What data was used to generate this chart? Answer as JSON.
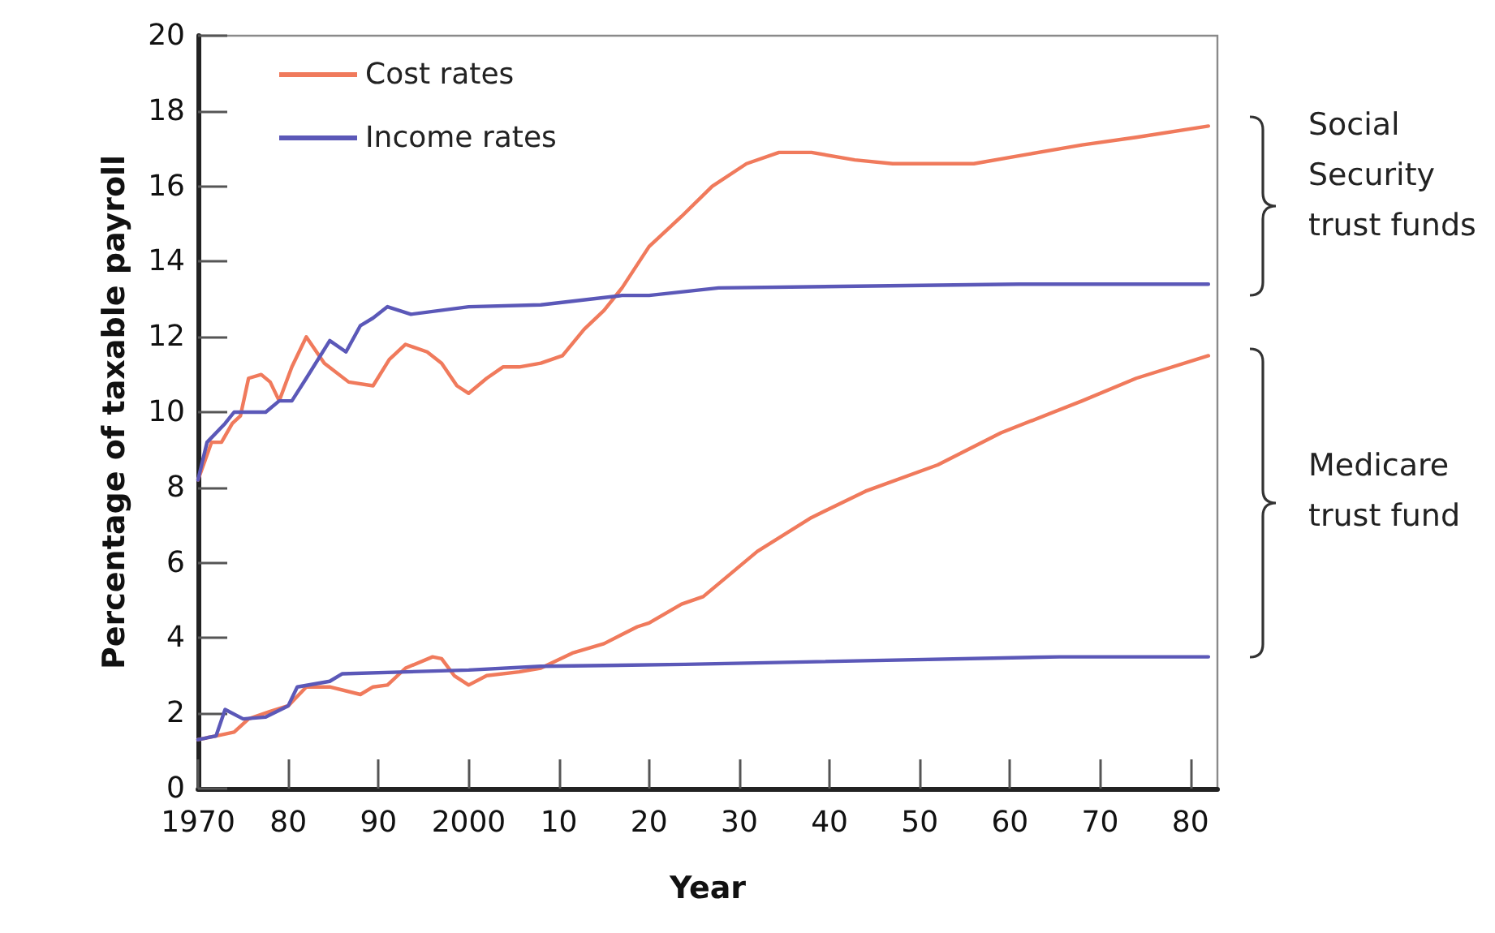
{
  "chart_data": {
    "type": "line",
    "xlabel": "Year",
    "ylabel": "Percentage of taxable payroll",
    "xlim": [
      1970,
      2083
    ],
    "ylim": [
      0,
      20
    ],
    "xticks": [
      1970,
      {
        "value": 1980,
        "label": "80"
      },
      {
        "value": 1990,
        "label": "90"
      },
      2000,
      {
        "value": 2010,
        "label": "10"
      },
      {
        "value": 2020,
        "label": "20"
      },
      {
        "value": 2030,
        "label": "30"
      },
      {
        "value": 2040,
        "label": "40"
      },
      {
        "value": 2050,
        "label": "50"
      },
      {
        "value": 2060,
        "label": "60"
      },
      {
        "value": 2070,
        "label": "70"
      },
      {
        "value": 2080,
        "label": "80"
      }
    ],
    "yticks": [
      0,
      2,
      4,
      6,
      8,
      10,
      12,
      14,
      16,
      18,
      20
    ],
    "grid": false,
    "legend": "top left",
    "marker": "none",
    "line_style": "solid",
    "annotations": [
      "Social Security trust funds",
      "Medicare trust fund"
    ],
    "series": [
      {
        "name": "Cost rates",
        "color": "#f07a5c",
        "x": [
          1970,
          1971.5,
          1972.6,
          1973.8,
          1974.7,
          1975.6,
          1977,
          1978,
          1979,
          1980.4,
          1982,
          1984,
          1986.7,
          1989.4,
          1991.2,
          1993,
          1995.4,
          1997,
          1998.7,
          2000,
          2002,
          2003.8,
          2005.6,
          2008,
          2010.4,
          2012.8,
          2015,
          2017,
          2020,
          2023.6,
          2027,
          2030.8,
          2034.4,
          2038,
          2042.8,
          2047,
          2051.8,
          2056,
          2062,
          2068,
          2074,
          2082
        ],
        "values": [
          8.2,
          9.2,
          9.2,
          9.7,
          9.9,
          10.9,
          11.0,
          10.8,
          10.3,
          11.2,
          12.0,
          11.3,
          10.8,
          10.7,
          11.4,
          11.8,
          11.6,
          11.3,
          10.7,
          10.5,
          10.9,
          11.2,
          11.2,
          11.3,
          11.5,
          12.2,
          12.7,
          13.3,
          14.4,
          15.2,
          16.0,
          16.6,
          16.9,
          16.9,
          16.7,
          16.6,
          16.6,
          16.6,
          16.85,
          17.1,
          17.3,
          17.6
        ]
      },
      {
        "name": "Income rates",
        "color": "#5b58b8",
        "x": [
          1970,
          1971,
          1973,
          1974,
          1977.5,
          1979,
          1980.4,
          1982,
          1984.6,
          1986.4,
          1988,
          1989.4,
          1991,
          1993.6,
          2000,
          2008,
          2017,
          2020,
          2027.7,
          2061,
          2082
        ],
        "values": [
          8.2,
          9.2,
          9.7,
          10.0,
          10.0,
          10.3,
          10.3,
          10.9,
          11.9,
          11.6,
          12.3,
          12.5,
          12.8,
          12.6,
          12.8,
          12.85,
          13.1,
          13.1,
          13.3,
          13.4,
          13.4
        ]
      },
      {
        "color": "#f07a5c",
        "x": [
          1970,
          1972,
          1974,
          1975.6,
          1978,
          1980,
          1982,
          1984.6,
          1988,
          1989.4,
          1991,
          1993,
          1996,
          1997,
          1998.4,
          2000,
          2002,
          2005.6,
          2008,
          2011.5,
          2015,
          2018.7,
          2020,
          2023.6,
          2026,
          2032,
          2038,
          2044,
          2052,
          2059,
          2068,
          2074,
          2082
        ],
        "values": [
          1.3,
          1.4,
          1.5,
          1.85,
          2.05,
          2.2,
          2.7,
          2.7,
          2.5,
          2.7,
          2.75,
          3.2,
          3.5,
          3.45,
          3.0,
          2.75,
          3.0,
          3.1,
          3.2,
          3.6,
          3.85,
          4.3,
          4.4,
          4.9,
          5.1,
          6.3,
          7.2,
          7.9,
          8.6,
          9.45,
          10.3,
          10.9,
          11.5
        ]
      },
      {
        "color": "#5b58b8",
        "x": [
          1970,
          1972,
          1973,
          1975,
          1977.5,
          1980,
          1981,
          1984.6,
          1986,
          2000,
          2008,
          2024,
          2065.5,
          2082
        ],
        "values": [
          1.3,
          1.4,
          2.1,
          1.85,
          1.9,
          2.2,
          2.7,
          2.85,
          3.05,
          3.15,
          3.25,
          3.3,
          3.5,
          3.5
        ]
      }
    ]
  }
}
